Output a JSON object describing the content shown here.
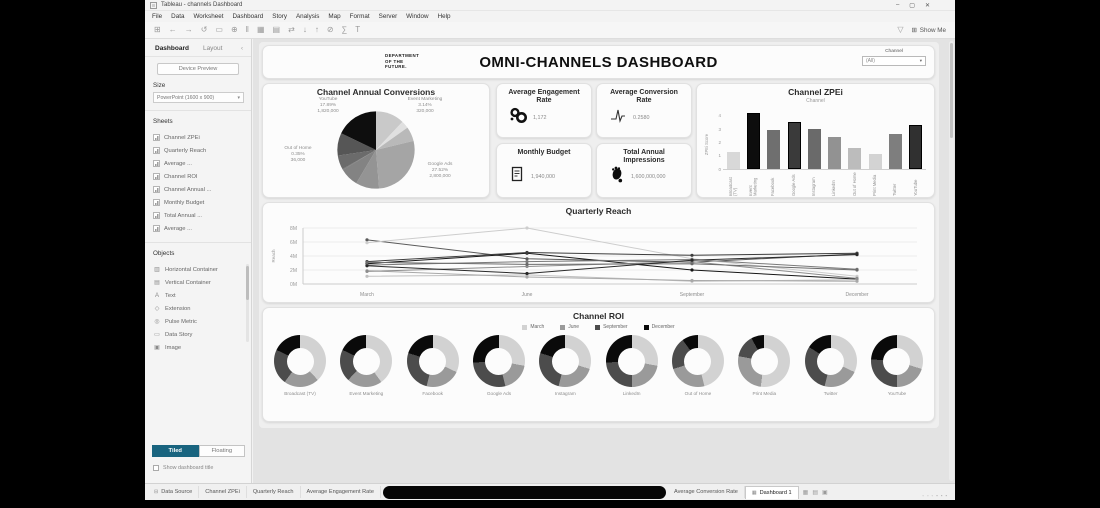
{
  "glyphs": {
    "caret": "▾",
    "collapse": "‹",
    "funnel": "▽",
    "grid": "⊞"
  },
  "window": {
    "title": "Tableau - channels Dashboard",
    "minimize": "–",
    "maximize": "▢",
    "close": "✕"
  },
  "menu": [
    "File",
    "Data",
    "Worksheet",
    "Dashboard",
    "Story",
    "Analysis",
    "Map",
    "Format",
    "Server",
    "Window",
    "Help"
  ],
  "toolbar": {
    "icons": [
      {
        "name": "tableau-logo-icon",
        "glyph": "⊞"
      },
      {
        "name": "undo-icon",
        "glyph": "←"
      },
      {
        "name": "redo-icon",
        "glyph": "→"
      },
      {
        "name": "replay-icon",
        "glyph": "↺"
      },
      {
        "name": "save-icon",
        "glyph": "▭"
      },
      {
        "name": "add-datasource-icon",
        "glyph": "⊕"
      },
      {
        "name": "pause-updates-icon",
        "glyph": "‖"
      },
      {
        "name": "new-worksheet-icon",
        "glyph": "▦"
      },
      {
        "name": "duplicate-sheet-icon",
        "glyph": "▤"
      },
      {
        "name": "swap-axes-icon",
        "glyph": "⇄"
      },
      {
        "name": "sort-ascending-icon",
        "glyph": "↓"
      },
      {
        "name": "sort-descending-icon",
        "glyph": "↑"
      },
      {
        "name": "clear-icon",
        "glyph": "⊘"
      },
      {
        "name": "totals-icon",
        "glyph": "∑"
      },
      {
        "name": "labels-icon",
        "glyph": "T"
      }
    ],
    "show_me": "Show Me"
  },
  "left_panel": {
    "tab_dashboard": "Dashboard",
    "tab_layout": "Layout",
    "device_preview": "Device Preview",
    "size_label": "Size",
    "size_value": "PowerPoint (1600 x 900)",
    "sheets_label": "Sheets",
    "sheets": [
      "Channel ZPEi",
      "Quarterly Reach",
      "Average ...",
      "Channel ROI",
      "Channel Annual ...",
      "Monthly Budget",
      "Total Annual ...",
      "Average ..."
    ],
    "objects_label": "Objects",
    "objects": [
      {
        "label": "Horizontal Container",
        "glyph": "▥"
      },
      {
        "label": "Vertical Container",
        "glyph": "▤"
      },
      {
        "label": "Text",
        "glyph": "A"
      },
      {
        "label": "Extension",
        "glyph": "◇"
      },
      {
        "label": "Pulse Metric",
        "glyph": "◎"
      },
      {
        "label": "Data Story",
        "glyph": "▭"
      },
      {
        "label": "Image",
        "glyph": "▣"
      }
    ],
    "tiled": "Tiled",
    "floating": "Floating",
    "show_title": "Show dashboard title"
  },
  "dashboard_header": {
    "logo_lines": [
      "DEPARTMENT",
      "OF THE",
      "FUTURE."
    ],
    "title": "OMNI-CHANNELS DASHBOARD",
    "filter": {
      "label": "Channel",
      "value": "(All)"
    }
  },
  "kpis": [
    {
      "title": "Average Engagement Rate",
      "value": "1,172",
      "icon": "engagement-icon"
    },
    {
      "title": "Average Conversion Rate",
      "value": "0.2580",
      "icon": "pulse-icon"
    },
    {
      "title": "Monthly Budget",
      "value": "1,940,000",
      "icon": "invoice-icon"
    },
    {
      "title": "Total Annual Impressions",
      "value": "1,600,000,000",
      "icon": "footprint-icon"
    }
  ],
  "chart_data": [
    {
      "type": "pie",
      "title": "Channel Annual Conversions",
      "segments": [
        {
          "name": "Broadcast (TV)",
          "pct": 12.0,
          "color": "#c9c9c9"
        },
        {
          "name": "Event Marketing",
          "pct": 3.14,
          "color": "#e0e0e0",
          "label": {
            "pct": "3.14%",
            "value": "320,000",
            "pos": "tr"
          }
        },
        {
          "name": "Facebook",
          "pct": 6.06,
          "color": "#b9b9b9"
        },
        {
          "name": "Google Ads",
          "pct": 27.52,
          "color": "#a5a5a5",
          "label": {
            "pct": "27.52%",
            "value": "2,800,000",
            "pos": "br"
          }
        },
        {
          "name": "Instagram",
          "pct": 9.8,
          "color": "#949494"
        },
        {
          "name": "LinkedIn",
          "pct": 7.9,
          "color": "#838383"
        },
        {
          "name": "Out of Home",
          "pct": 0.35,
          "color": "#757575",
          "label": {
            "pct": "0.35%",
            "value": "36,000",
            "pos": "l"
          }
        },
        {
          "name": "Print Media",
          "pct": 5.9,
          "color": "#6b6b6b"
        },
        {
          "name": "Twitter",
          "pct": 9.44,
          "color": "#565656"
        },
        {
          "name": "YouTube",
          "pct": 17.89,
          "color": "#0e0e0e",
          "label": {
            "pct": "17.89%",
            "value": "1,820,000",
            "pos": "tl"
          }
        }
      ]
    },
    {
      "type": "bar",
      "title": "Channel ZPEi",
      "subtitle": "Channel",
      "ylabel": "ZPEi Score",
      "yticks": [
        0,
        1,
        2,
        3,
        4
      ],
      "ymax": 4.5,
      "categories": [
        "Broadcast (TV)",
        "Event Marketing",
        "Facebook",
        "Google Ads",
        "Instagram",
        "LinkedIn",
        "Out of Home",
        "Print Media",
        "Twitter",
        "YouTube"
      ],
      "values": [
        1.3,
        4.2,
        2.9,
        3.5,
        3.0,
        2.4,
        1.6,
        1.1,
        2.6,
        3.3
      ],
      "colors": [
        "#d8d8d8",
        "#0d0d0d",
        "#6f6f6f",
        "#3a3a3a",
        "#6a6a6a",
        "#929292",
        "#bcbcbc",
        "#d3d3d3",
        "#7e7e7e",
        "#303030"
      ]
    },
    {
      "type": "line",
      "title": "Quarterly Reach",
      "ylabel": "Reach",
      "x": [
        "March",
        "June",
        "September",
        "December"
      ],
      "yticks": [
        "0M",
        "2M",
        "4M",
        "6M",
        "8M"
      ],
      "ymax": 8,
      "series": [
        {
          "name": "Broadcast (TV)",
          "values": [
            6.3,
            3.6,
            3.1,
            4.3
          ],
          "color": "#5a5a5a"
        },
        {
          "name": "Event Marketing",
          "values": [
            5.9,
            8.0,
            3.6,
            1.1
          ],
          "color": "#cdcdcd"
        },
        {
          "name": "Facebook",
          "values": [
            2.9,
            4.4,
            2.0,
            0.7
          ],
          "color": "#161616"
        },
        {
          "name": "Google Ads",
          "values": [
            3.2,
            4.5,
            4.1,
            4.4
          ],
          "color": "#3d3d3d"
        },
        {
          "name": "Instagram",
          "values": [
            2.7,
            3.2,
            3.5,
            2.1
          ],
          "color": "#7a7a7a"
        },
        {
          "name": "LinkedIn",
          "values": [
            1.1,
            1.3,
            0.4,
            0.6
          ],
          "color": "#c0c0c0"
        },
        {
          "name": "Out of Home",
          "values": [
            1.9,
            1.0,
            0.5,
            0.4
          ],
          "color": "#a8a8a8"
        },
        {
          "name": "Print Media",
          "values": [
            1.8,
            2.5,
            3.2,
            0.8
          ],
          "color": "#8d8d8d"
        },
        {
          "name": "Twitter",
          "values": [
            3.1,
            2.8,
            2.9,
            2.0
          ],
          "color": "#6b6b6b"
        },
        {
          "name": "YouTube",
          "values": [
            2.6,
            1.5,
            3.4,
            4.2
          ],
          "color": "#2a2a2a"
        }
      ]
    },
    {
      "type": "donut-grid",
      "title": "Channel ROI",
      "legend": [
        {
          "label": "March",
          "color": "#d2d2d2"
        },
        {
          "label": "June",
          "color": "#9a9a9a"
        },
        {
          "label": "September",
          "color": "#4c4c4c"
        },
        {
          "label": "December",
          "color": "#0a0a0a"
        }
      ],
      "channels": [
        {
          "name": "Broadcast (TV)",
          "shares": [
            38,
            22,
            22,
            18
          ]
        },
        {
          "name": "Event Marketing",
          "shares": [
            40,
            22,
            20,
            18
          ]
        },
        {
          "name": "Facebook",
          "shares": [
            32,
            22,
            26,
            20
          ]
        },
        {
          "name": "Google Ads",
          "shares": [
            28,
            18,
            28,
            26
          ]
        },
        {
          "name": "Instagram",
          "shares": [
            30,
            24,
            26,
            20
          ]
        },
        {
          "name": "LinkedIn",
          "shares": [
            28,
            22,
            24,
            26
          ]
        },
        {
          "name": "Out of Home",
          "shares": [
            46,
            24,
            20,
            10
          ]
        },
        {
          "name": "Print Media",
          "shares": [
            52,
            26,
            14,
            8
          ]
        },
        {
          "name": "Twitter",
          "shares": [
            32,
            22,
            30,
            16
          ]
        },
        {
          "name": "YouTube",
          "shares": [
            30,
            20,
            26,
            24
          ]
        }
      ]
    }
  ],
  "bottom_bar": {
    "tabs": [
      {
        "label": "Data Source",
        "icon": "⊟"
      },
      {
        "label": "Channel ZPEi"
      },
      {
        "label": "Quarterly Reach"
      },
      {
        "label": "Average Engagement Rate"
      },
      {
        "type": "redacted"
      },
      {
        "label": "Average Conversion Rate"
      },
      {
        "label": "Dashboard 1",
        "icon": "▦",
        "active": true
      }
    ],
    "new_buttons": [
      {
        "name": "new-worksheet-button",
        "glyph": "▦"
      },
      {
        "name": "new-dashboard-button",
        "glyph": "▤"
      },
      {
        "name": "new-story-button",
        "glyph": "▣"
      }
    ],
    "status_icons": [
      "▫",
      "▫",
      "▫",
      "▪",
      "▪",
      "▪"
    ]
  }
}
